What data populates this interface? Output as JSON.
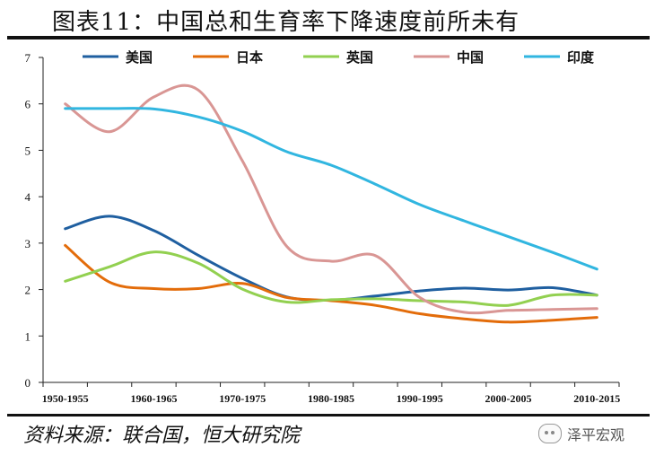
{
  "header": {
    "title": "图表11：中国总和生育率下降速度前所未有"
  },
  "footer": {
    "source": "资料来源：联合国，恒大研究院",
    "watermark": "泽平宏观"
  },
  "colors": {
    "rule": "#111111"
  },
  "chart_data": {
    "type": "line",
    "ylim": [
      0,
      7
    ],
    "yticks": [
      0,
      1,
      2,
      3,
      4,
      5,
      6,
      7
    ],
    "categories": [
      "1950-1955",
      "1960-1965",
      "1970-1975",
      "1980-1985",
      "1990-1995",
      "2000-2005",
      "2010-2015"
    ],
    "grid": false,
    "legend": "top",
    "series": [
      {
        "name": "美国",
        "color": "#1f5fa0",
        "x": [
          1950,
          1955,
          1960,
          1965,
          1970,
          1975,
          1980,
          1985,
          1990,
          1995,
          2000,
          2005,
          2010
        ],
        "values": [
          3.31,
          3.58,
          3.27,
          2.74,
          2.24,
          1.84,
          1.77,
          1.86,
          1.97,
          2.03,
          1.99,
          2.04,
          1.88
        ]
      },
      {
        "name": "日本",
        "color": "#e36c0a",
        "x": [
          1950,
          1955,
          1960,
          1965,
          1970,
          1975,
          1980,
          1985,
          1990,
          1995,
          2000,
          2005,
          2010
        ],
        "values": [
          2.95,
          2.16,
          2.02,
          2.02,
          2.13,
          1.83,
          1.76,
          1.66,
          1.48,
          1.37,
          1.3,
          1.34,
          1.4
        ]
      },
      {
        "name": "英国",
        "color": "#92d050",
        "x": [
          1950,
          1955,
          1960,
          1965,
          1970,
          1975,
          1980,
          1985,
          1990,
          1995,
          2000,
          2005,
          2010
        ],
        "values": [
          2.18,
          2.49,
          2.81,
          2.57,
          2.01,
          1.73,
          1.78,
          1.8,
          1.76,
          1.73,
          1.66,
          1.88,
          1.88
        ]
      },
      {
        "name": "中国",
        "color": "#d99694",
        "x": [
          1950,
          1955,
          1960,
          1965,
          1970,
          1975,
          1980,
          1985,
          1990,
          1995,
          2000,
          2005,
          2010
        ],
        "values": [
          6.0,
          5.4,
          6.15,
          6.3,
          4.77,
          2.93,
          2.61,
          2.73,
          1.83,
          1.51,
          1.55,
          1.57,
          1.59
        ]
      },
      {
        "name": "印度",
        "color": "#31b6e0",
        "x": [
          1950,
          1955,
          1960,
          1965,
          1970,
          1975,
          1980,
          1985,
          1990,
          1995,
          2000,
          2005,
          2010
        ],
        "values": [
          5.9,
          5.9,
          5.89,
          5.72,
          5.41,
          4.97,
          4.68,
          4.27,
          3.83,
          3.48,
          3.14,
          2.8,
          2.44
        ]
      }
    ]
  }
}
